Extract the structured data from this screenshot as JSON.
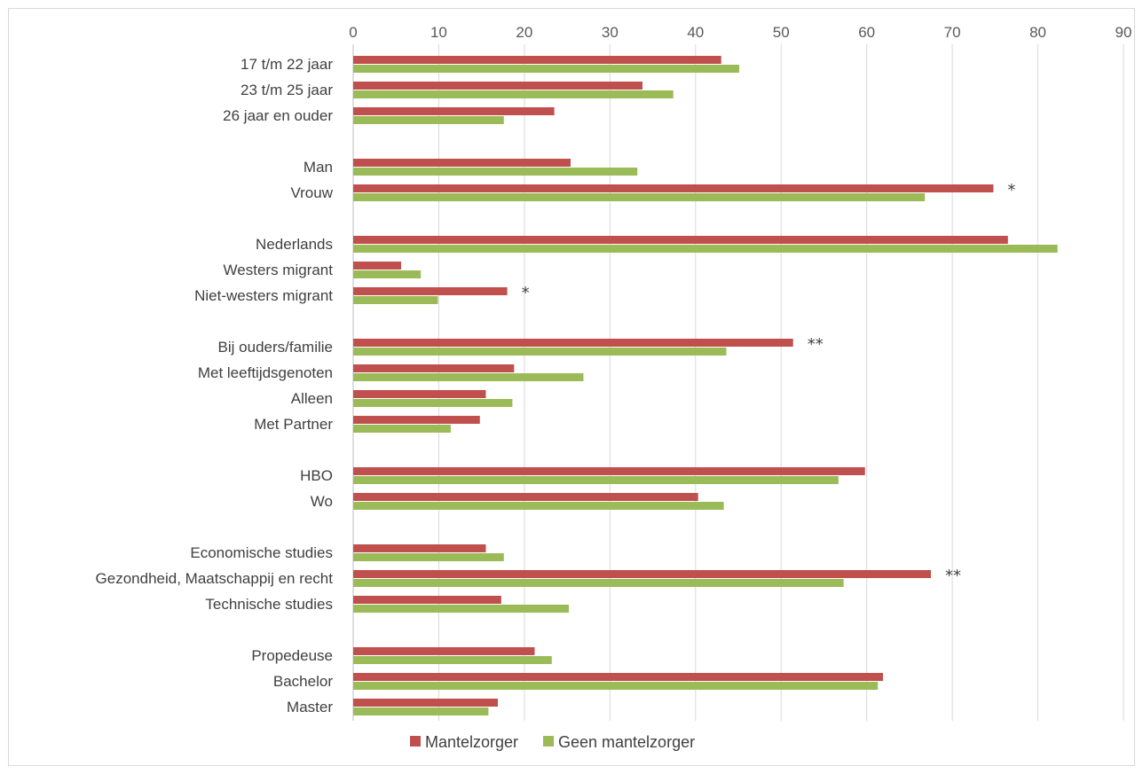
{
  "chart_data": {
    "type": "bar",
    "orientation": "horizontal",
    "xlim": [
      0,
      90
    ],
    "x_ticks": [
      0,
      10,
      20,
      30,
      40,
      50,
      60,
      70,
      80,
      90
    ],
    "grid": true,
    "legend_position": "bottom",
    "categories": [
      "17 t/m 22 jaar",
      "23 t/m 25 jaar",
      "26 jaar en ouder",
      "Man",
      "Vrouw",
      "Nederlands",
      "Westers migrant",
      "Niet-westers migrant",
      "Bij ouders/familie",
      "Met leeftijdsgenoten",
      "Alleen",
      "Met Partner",
      "HBO",
      "Wo",
      "Economische studies",
      "Gezondheid, Maatschappij en recht",
      "Technische studies",
      "Propedeuse",
      "Bachelor",
      "Master"
    ],
    "groups": [
      3,
      2,
      3,
      4,
      2,
      3,
      3
    ],
    "annotations": [
      "",
      "",
      "",
      "",
      "*",
      "",
      "",
      "*",
      "**",
      "",
      "",
      "",
      "",
      "",
      "",
      "**",
      "",
      "",
      "",
      ""
    ],
    "series": [
      {
        "name": "Mantelzorger",
        "color": "#c0504d",
        "values": [
          43.0,
          33.8,
          23.5,
          25.4,
          74.8,
          76.5,
          5.6,
          18.0,
          51.4,
          18.8,
          15.5,
          14.8,
          59.8,
          40.3,
          15.5,
          67.5,
          17.3,
          21.2,
          61.9,
          16.9
        ]
      },
      {
        "name": "Geen mantelzorger",
        "color": "#9bbb59",
        "values": [
          45.1,
          37.4,
          17.6,
          33.2,
          66.8,
          82.3,
          7.9,
          9.9,
          43.6,
          26.9,
          18.6,
          11.4,
          56.7,
          43.3,
          17.6,
          57.3,
          25.2,
          23.2,
          61.3,
          15.8
        ]
      }
    ]
  }
}
